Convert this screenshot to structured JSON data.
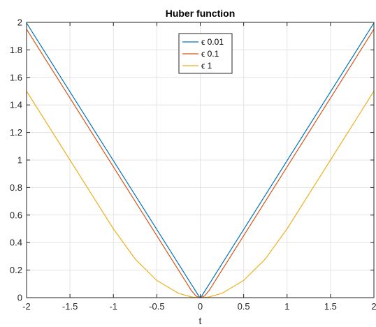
{
  "chart_data": {
    "type": "line",
    "title": "Huber function",
    "xlabel": "t",
    "ylabel": "",
    "xlim": [
      -2,
      2
    ],
    "ylim": [
      0,
      2
    ],
    "xticks": [
      "-2",
      "-1.5",
      "-1",
      "-0.5",
      "0",
      "0.5",
      "1",
      "1.5",
      "2"
    ],
    "yticks": [
      "0",
      "0.2",
      "0.4",
      "0.6",
      "0.8",
      "1",
      "1.2",
      "1.4",
      "1.6",
      "1.8",
      "2"
    ],
    "grid": true,
    "legend_position": "top-center",
    "x": [
      -2,
      -1.5,
      -1,
      -0.75,
      -0.5,
      -0.25,
      -0.1,
      -0.05,
      -0.01,
      0,
      0.01,
      0.05,
      0.1,
      0.25,
      0.5,
      0.75,
      1,
      1.5,
      2
    ],
    "series": [
      {
        "name": "ϵ 0.01",
        "color": "#0072BD",
        "values": [
          1.995,
          1.495,
          0.995,
          0.745,
          0.495,
          0.245,
          0.095,
          0.045,
          0.005,
          0,
          0.005,
          0.045,
          0.095,
          0.245,
          0.495,
          0.745,
          0.995,
          1.495,
          1.995
        ]
      },
      {
        "name": "ϵ 0.1",
        "color": "#D95319",
        "values": [
          1.95,
          1.45,
          0.95,
          0.7,
          0.45,
          0.2,
          0.05,
          0.0125,
          0.0005,
          0,
          0.0005,
          0.0125,
          0.05,
          0.2,
          0.45,
          0.7,
          0.95,
          1.45,
          1.95
        ]
      },
      {
        "name": "ϵ 1",
        "color": "#EDB120",
        "values": [
          1.5,
          1.0,
          0.5,
          0.28125,
          0.125,
          0.03125,
          0.005,
          0.00125,
          5e-05,
          0,
          5e-05,
          0.00125,
          0.005,
          0.03125,
          0.125,
          0.28125,
          0.5,
          1.0,
          1.5
        ]
      }
    ]
  }
}
